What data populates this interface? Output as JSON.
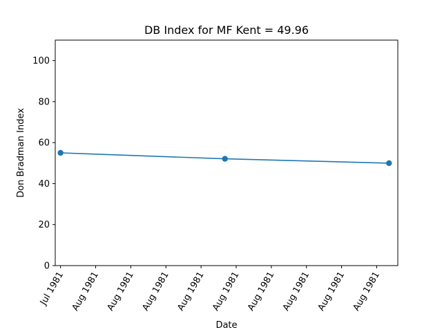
{
  "chart_data": {
    "type": "line",
    "title": "DB Index for MF Kent = 49.96",
    "xlabel": "Date",
    "ylabel": "Don Bradman Index",
    "ylim": [
      0,
      110
    ],
    "yticks": [
      0,
      20,
      40,
      60,
      80,
      100
    ],
    "xlim": [
      -0.15,
      9.6
    ],
    "xticks": [
      0,
      1,
      2,
      3,
      4,
      5,
      6,
      7,
      8,
      9
    ],
    "xtick_labels": [
      "Jul 1981",
      "Aug 1981",
      "Aug 1981",
      "Aug 1981",
      "Aug 1981",
      "Aug 1981",
      "Aug 1981",
      "Aug 1981",
      "Aug 1981",
      "Aug 1981"
    ],
    "grid": false,
    "series": [
      {
        "name": "DB Index",
        "color": "#1f77b4",
        "x": [
          0,
          4.68,
          9.35
        ],
        "values": [
          55.0,
          52.1,
          49.96
        ]
      }
    ]
  }
}
